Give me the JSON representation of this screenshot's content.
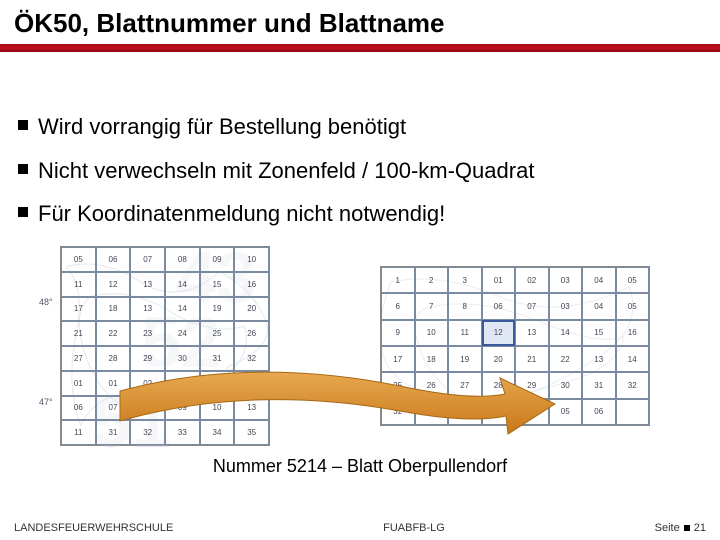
{
  "title": "ÖK50, Blattnummer und Blattname",
  "bullets": [
    "Wird vorrangig für Bestellung benötigt",
    "Nicht verwechseln mit Zonenfeld / 100-km-Quadrat",
    "Für Koordinatenmeldung nicht notwendig!"
  ],
  "caption": "Nummer 5214 – Blatt Oberpullendorf",
  "footer": {
    "left": "LANDESFEUERWEHRSCHULE",
    "center": "FUABFB-LG",
    "right_label": "Seite",
    "right_num": "21"
  },
  "left_grid": {
    "cols": 6,
    "rows": 8,
    "watermarks": [
      "43",
      "52",
      "51"
    ],
    "cells": [
      [
        "05",
        "06",
        "07",
        "08",
        "09",
        "10"
      ],
      [
        "11",
        "12",
        "13",
        "14",
        "15",
        "16"
      ],
      [
        "17",
        "18",
        "13",
        "14",
        "19",
        "20"
      ],
      [
        "21",
        "22",
        "23",
        "24",
        "25",
        "26"
      ],
      [
        "27",
        "28",
        "29",
        "30",
        "31",
        "32"
      ],
      [
        "01",
        "01",
        "02",
        "03",
        "04",
        "05"
      ],
      [
        "06",
        "07",
        "08",
        "09",
        "10",
        "13"
      ],
      [
        "11",
        "31",
        "32",
        "33",
        "34",
        "35"
      ]
    ],
    "axis_left": [
      "48°",
      "47°"
    ]
  },
  "right_grid": {
    "cols": 8,
    "rows": 6,
    "cells": [
      [
        "1",
        "2",
        "3",
        "01",
        "02",
        "03",
        "04",
        "05"
      ],
      [
        "6",
        "7",
        "8",
        "06",
        "07",
        "03",
        "04",
        "05"
      ],
      [
        "9",
        "10",
        "11",
        "12",
        "13",
        "14",
        "15",
        "16"
      ],
      [
        "17",
        "18",
        "19",
        "20",
        "21",
        "22",
        "13",
        "14"
      ],
      [
        "25",
        "26",
        "27",
        "28",
        "29",
        "30",
        "31",
        "32"
      ],
      [
        "32",
        "01",
        "02",
        "03",
        "04",
        "05",
        "06",
        ""
      ]
    ],
    "highlight_row": 2,
    "highlight_col": 3
  },
  "arrow": {
    "fill": "#d88a2a",
    "stroke": "#b06810"
  },
  "colors": {
    "title_bar": "#a00815",
    "grid_line": "#7a8aa0",
    "watermark": "rgba(180,195,215,0.35)"
  }
}
